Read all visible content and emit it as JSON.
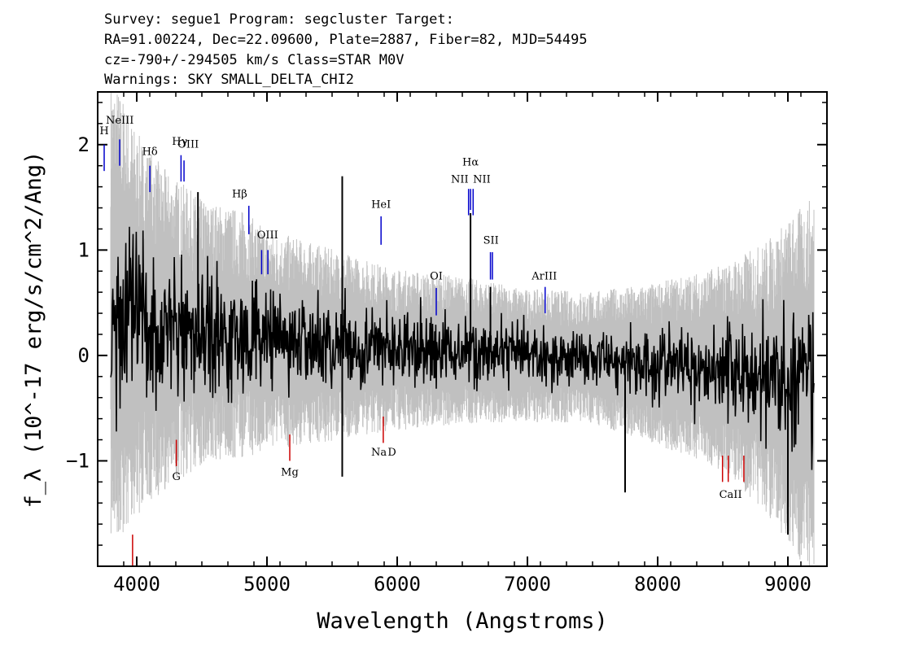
{
  "header": {
    "line1": "Survey: segue1 Program: segcluster Target:",
    "line2": "RA=91.00224, Dec=22.09600, Plate=2887, Fiber=82, MJD=54495",
    "line3": "cz=-790+/-294505 km/s Class=STAR M0V",
    "line4": "Warnings: SKY SMALL_DELTA_CHI2"
  },
  "chart_data": {
    "type": "line",
    "xlabel": "Wavelength (Angstroms)",
    "ylabel": "f_λ (10^-17 erg/s/cm^2/Ang)",
    "xlim": [
      3700,
      9300
    ],
    "ylim": [
      -2,
      2.5
    ],
    "xticks": [
      4000,
      5000,
      6000,
      7000,
      8000,
      9000
    ],
    "yticks": [
      -1,
      0,
      1,
      2
    ],
    "series": [
      {
        "kind": "error",
        "color": "#c0c0c0",
        "x": [
          3800,
          3900,
          4000,
          4200,
          4500,
          4800,
          5000,
          5500,
          6000,
          6500,
          7000,
          7500,
          8000,
          8500,
          8800,
          9000,
          9200
        ],
        "y": [
          1.6,
          1.5,
          1.3,
          1.1,
          0.9,
          0.85,
          0.75,
          0.65,
          0.55,
          0.5,
          0.45,
          0.45,
          0.55,
          0.7,
          0.9,
          1.1,
          1.3
        ]
      },
      {
        "kind": "flux",
        "color": "#000000",
        "x": [
          3800,
          3900,
          4000,
          4200,
          4500,
          4800,
          5000,
          5500,
          6000,
          6500,
          7000,
          7500,
          8000,
          8500,
          8800,
          9000,
          9200
        ],
        "y": [
          0.45,
          0.35,
          0.3,
          0.25,
          0.22,
          0.2,
          0.15,
          0.1,
          0.05,
          0.05,
          0.0,
          -0.02,
          -0.08,
          -0.12,
          -0.2,
          -0.25,
          -0.3
        ]
      }
    ],
    "spikes": [
      {
        "x": 4470,
        "y": 1.55
      },
      {
        "x": 5578,
        "y": 1.7
      },
      {
        "x": 5578,
        "y": -1.15
      },
      {
        "x": 6563,
        "y": 1.35
      },
      {
        "x": 6716,
        "y": 0.65
      },
      {
        "x": 7750,
        "y": -1.3
      },
      {
        "x": 9000,
        "y": -1.7
      }
    ],
    "lines": [
      {
        "label": "H",
        "x": 3750,
        "y": 2.1,
        "x1": 3750,
        "y0": 1.75,
        "y1": 2.0,
        "color": "#0000cc"
      },
      {
        "label": "NeIII",
        "x": 3870,
        "y": 2.2,
        "x1": 3869,
        "y0": 1.8,
        "y1": 2.05,
        "color": "#0000cc"
      },
      {
        "label": "Hδ",
        "x": 4101,
        "y": 1.9,
        "x1": 4101,
        "y0": 1.55,
        "y1": 1.8,
        "color": "#0000cc"
      },
      {
        "label": "Hγ",
        "x": 4330,
        "y": 2.0,
        "x1": 4340,
        "y0": 1.65,
        "y1": 1.9,
        "color": "#0000cc"
      },
      {
        "label": "OIII",
        "x": 4395,
        "y": 1.97,
        "x1": 4363,
        "y0": 1.65,
        "y1": 1.85,
        "color": "#0000cc"
      },
      {
        "label": "Hβ",
        "x": 4790,
        "y": 1.5,
        "x1": 4861,
        "y0": 1.15,
        "y1": 1.42,
        "color": "#0000cc"
      },
      {
        "label": "OIII",
        "x": 5005,
        "y": 1.11,
        "x1": 4959,
        "x2": 5007,
        "y0": 0.77,
        "y1": 1.0,
        "color": "#0000cc"
      },
      {
        "label": "HeI",
        "x": 5876,
        "y": 1.4,
        "x1": 5876,
        "y0": 1.05,
        "y1": 1.32,
        "color": "#0000cc"
      },
      {
        "label": "OI",
        "x": 6300,
        "y": 0.72,
        "x1": 6300,
        "y0": 0.38,
        "y1": 0.64,
        "color": "#0000cc"
      },
      {
        "label": "NII",
        "x": 6480,
        "y": 1.64,
        "x1": 6548,
        "y0": 1.33,
        "y1": 1.58,
        "color": "#0000cc"
      },
      {
        "label": "Hα",
        "x": 6563,
        "y": 1.8,
        "x1": 6563,
        "y0": 1.38,
        "y1": 1.58,
        "color": "#0000cc"
      },
      {
        "label": "NII",
        "x": 6650,
        "y": 1.64,
        "x1": 6583,
        "y0": 1.33,
        "y1": 1.58,
        "color": "#0000cc"
      },
      {
        "label": "SII",
        "x": 6720,
        "y": 1.06,
        "x1": 6716,
        "x2": 6731,
        "y0": 0.72,
        "y1": 0.98,
        "color": "#0000cc"
      },
      {
        "label": "ArIII",
        "x": 7130,
        "y": 0.72,
        "x1": 7136,
        "y0": 0.4,
        "y1": 0.65,
        "color": "#0000cc"
      },
      {
        "label": "G",
        "x": 4304,
        "y": -1.18,
        "x1": 4304,
        "y0": -1.05,
        "y1": -0.8,
        "color": "#cc0000"
      },
      {
        "label": "Mg",
        "x": 5175,
        "y": -1.14,
        "x1": 5175,
        "y0": -1.0,
        "y1": -0.75,
        "color": "#cc0000"
      },
      {
        "label": "Na",
        "x": 5860,
        "y": -0.95,
        "x1": 5893,
        "y0": -0.83,
        "y1": -0.58,
        "color": "#cc0000"
      },
      {
        "label": "D",
        "x": 5960,
        "y": -0.95
      },
      {
        "label": "CaII",
        "x": 8560,
        "y": -1.35,
        "x1": 8498,
        "x2": 8542,
        "x3": 8662,
        "y0": -1.2,
        "y1": -0.95,
        "color": "#cc0000"
      },
      {
        "label": "",
        "x1": 3968,
        "y0": -2.0,
        "y1": -1.7,
        "color": "#cc0000"
      }
    ]
  }
}
